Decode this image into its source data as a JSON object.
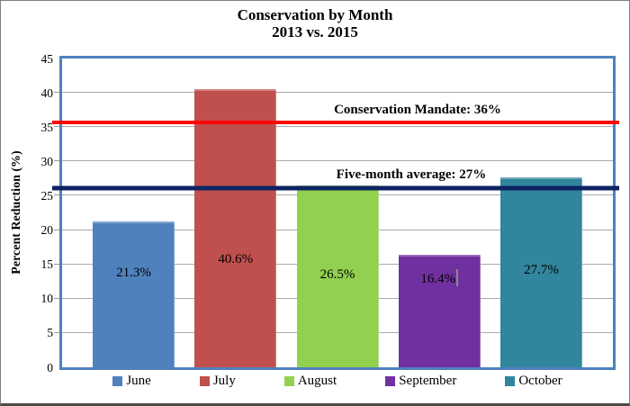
{
  "window": {
    "background": "#FFFFFF",
    "border_color": "#808080"
  },
  "chart_data": {
    "type": "bar",
    "title": "Conservation by Month",
    "subtitle": "2013 vs. 2015",
    "ylabel": "Percent Reduction (%)",
    "ylim": [
      0,
      45
    ],
    "yticks": [
      0,
      5,
      10,
      15,
      20,
      25,
      30,
      35,
      40,
      45
    ],
    "grid": true,
    "legend_position": "bottom",
    "categories": [
      "June",
      "July",
      "August",
      "September",
      "October"
    ],
    "values": [
      21.3,
      40.6,
      26.5,
      16.4,
      27.7
    ],
    "value_labels": [
      "21.3%",
      "40.6%",
      "26.5%",
      "16.4%",
      "27.7%"
    ],
    "bar_colors": [
      "#4F81BD",
      "#C0504D",
      "#92D050",
      "#7030A0",
      "#31859C"
    ],
    "plot_border_color": "#4F81BD",
    "gridline_color": "#ABABAB",
    "reference_lines": [
      {
        "label": "Conservation Mandate: 36%",
        "value": 36,
        "plotted_at": 35.7,
        "color": "#FF0000"
      },
      {
        "label": "Five-month average: 27%",
        "value": 27,
        "plotted_at": 26.1,
        "color": "#0D2463"
      }
    ],
    "artifact_text_cursor_after_label": "16.4%"
  }
}
